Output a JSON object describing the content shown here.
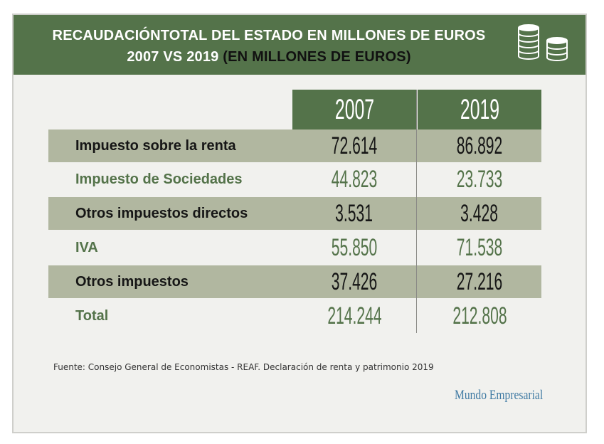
{
  "title": {
    "line1": "RECAUDACIÓNTOTAL DEL ESTADO EN MILLONES DE EUROS",
    "line2_main": "2007 VS 2019",
    "line2_paren": "(EN MILLONES DE EUROS)"
  },
  "chart_data": {
    "type": "table",
    "columns": [
      "2007",
      "2019"
    ],
    "rows": [
      {
        "label": "Impuesto sobre la renta",
        "values": [
          "72.614",
          "86.892"
        ]
      },
      {
        "label": "Impuesto de Sociedades",
        "values": [
          "44.823",
          "23.733"
        ]
      },
      {
        "label": "Otros impuestos directos",
        "values": [
          "3.531",
          "3.428"
        ]
      },
      {
        "label": "IVA",
        "values": [
          "55.850",
          "71.538"
        ]
      },
      {
        "label": "Otros impuestos",
        "values": [
          "37.426",
          "27.216"
        ]
      },
      {
        "label": "Total",
        "values": [
          "214.244",
          "212.808"
        ]
      }
    ]
  },
  "source": "Fuente: Consejo General de Economistas - REAF. Declaración de renta y patrimonio 2019",
  "brand": "Mundo Empresarial",
  "icons": {
    "header": "coin-stack-icon"
  },
  "colors": {
    "header_green": "#54734a",
    "row_shade": "#b1b7a0",
    "green_text": "#54734a",
    "dark_text": "#161616",
    "brand_blue": "#3f7aa3"
  }
}
